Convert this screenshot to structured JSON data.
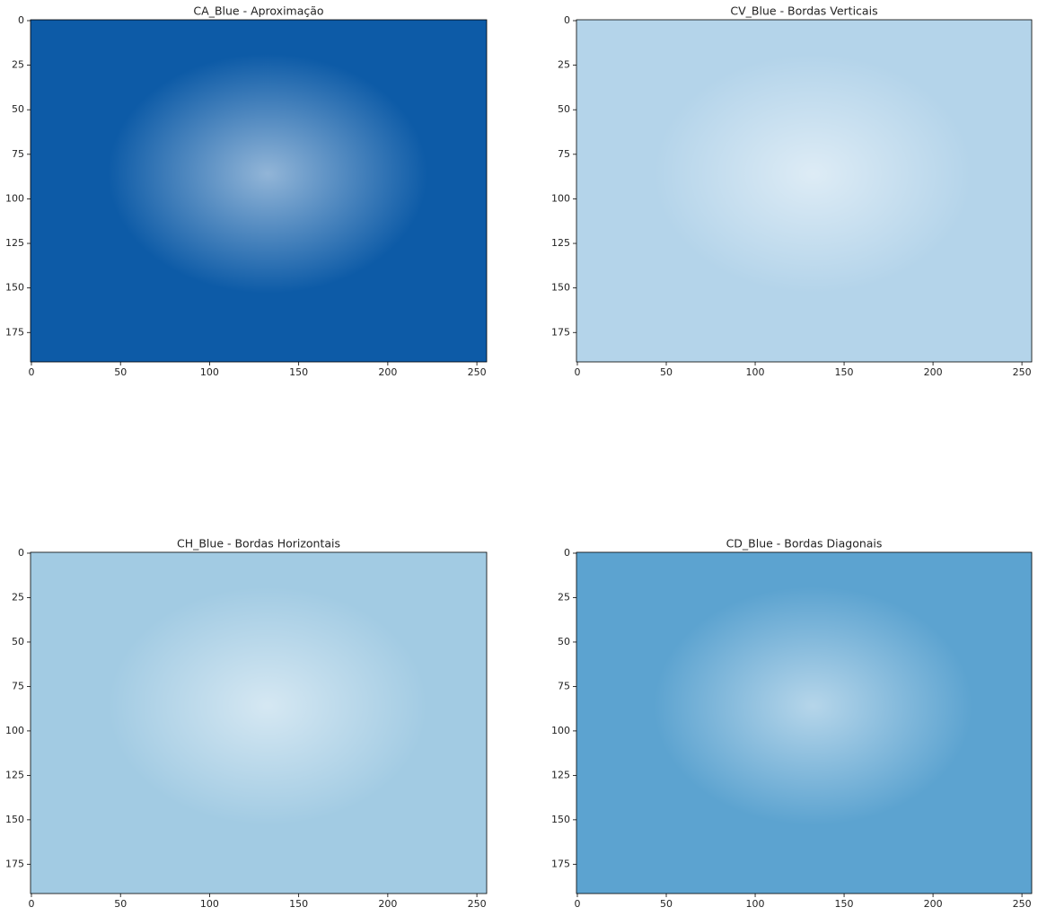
{
  "chart_data": [
    {
      "type": "image",
      "title": "CA_Blue - Aproximação",
      "color": "#0d5ba7",
      "xlim": [
        -0.5,
        255.5
      ],
      "ylim": [
        191.5,
        -0.5
      ],
      "xticks": [
        0,
        50,
        100,
        150,
        200,
        250
      ],
      "yticks": [
        0,
        25,
        50,
        75,
        100,
        125,
        150,
        175
      ]
    },
    {
      "type": "image",
      "title": "CV_Blue - Bordas Verticais",
      "color": "#b4d4ea",
      "xlim": [
        -0.5,
        255.5
      ],
      "ylim": [
        191.5,
        -0.5
      ],
      "xticks": [
        0,
        50,
        100,
        150,
        200,
        250
      ],
      "yticks": [
        0,
        25,
        50,
        75,
        100,
        125,
        150,
        175
      ]
    },
    {
      "type": "image",
      "title": "CH_Blue - Bordas Horizontais",
      "color": "#a2cbe3",
      "xlim": [
        -0.5,
        255.5
      ],
      "ylim": [
        191.5,
        -0.5
      ],
      "xticks": [
        0,
        50,
        100,
        150,
        200,
        250
      ],
      "yticks": [
        0,
        25,
        50,
        75,
        100,
        125,
        150,
        175
      ]
    },
    {
      "type": "image",
      "title": "CD_Blue - Bordas Diagonais",
      "color": "#5ca3d0",
      "xlim": [
        -0.5,
        255.5
      ],
      "ylim": [
        191.5,
        -0.5
      ],
      "xticks": [
        0,
        50,
        100,
        150,
        200,
        250
      ],
      "yticks": [
        0,
        25,
        50,
        75,
        100,
        125,
        150,
        175
      ]
    }
  ]
}
